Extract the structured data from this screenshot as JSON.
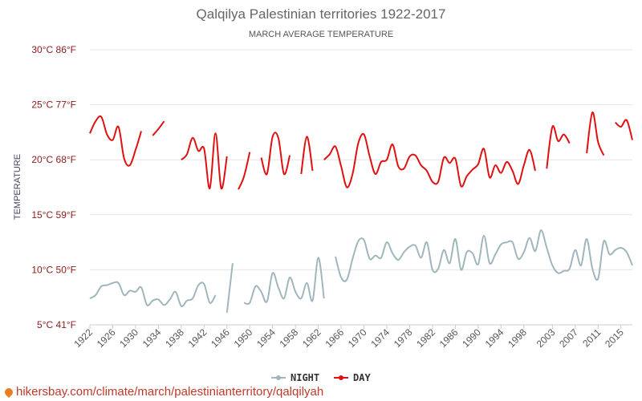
{
  "chart_data": {
    "type": "line",
    "title": "Qalqilya Palestinian territories 1922-2017",
    "subtitle": "MARCH AVERAGE TEMPERATURE",
    "ylabel": "TEMPERATURE",
    "ylim": [
      5,
      30
    ],
    "xlim": [
      1922,
      2017
    ],
    "yticks": [
      {
        "value": 5,
        "label": "5°C 41°F"
      },
      {
        "value": 10,
        "label": "10°C 50°F"
      },
      {
        "value": 15,
        "label": "15°C 59°F"
      },
      {
        "value": 20,
        "label": "20°C 68°F"
      },
      {
        "value": 25,
        "label": "25°C 77°F"
      },
      {
        "value": 30,
        "label": "30°C 86°F"
      }
    ],
    "xticks": [
      1922,
      1926,
      1930,
      1934,
      1938,
      1942,
      1946,
      1950,
      1954,
      1958,
      1962,
      1966,
      1970,
      1974,
      1978,
      1982,
      1986,
      1990,
      1994,
      1998,
      2003,
      2007,
      2011,
      2015
    ],
    "legend_position": "bottom-center",
    "grid": true,
    "series": [
      {
        "name": "NIGHT",
        "color": "#9fb6bd",
        "values": [
          [
            1922,
            7.4
          ],
          [
            1923,
            7.7
          ],
          [
            1924,
            8.5
          ],
          [
            1925,
            8.6
          ],
          [
            1926,
            8.8
          ],
          [
            1927,
            8.8
          ],
          [
            1928,
            7.7
          ],
          [
            1929,
            8.1
          ],
          [
            1930,
            8.0
          ],
          [
            1931,
            8.4
          ],
          [
            1932,
            6.8
          ],
          [
            1933,
            7.2
          ],
          [
            1934,
            7.3
          ],
          [
            1935,
            6.8
          ],
          [
            1936,
            7.3
          ],
          [
            1937,
            8.0
          ],
          [
            1938,
            6.7
          ],
          [
            1939,
            7.2
          ],
          [
            1940,
            7.4
          ],
          [
            1941,
            8.6
          ],
          [
            1942,
            8.7
          ],
          [
            1943,
            7.0
          ],
          [
            1944,
            7.7
          ],
          null,
          [
            1946,
            6.1
          ],
          [
            1947,
            10.6
          ],
          null,
          [
            1949,
            7.0
          ],
          [
            1950,
            7.0
          ],
          [
            1951,
            8.5
          ],
          [
            1952,
            8.0
          ],
          [
            1953,
            7.1
          ],
          [
            1954,
            9.7
          ],
          [
            1955,
            8.4
          ],
          [
            1956,
            7.4
          ],
          [
            1957,
            9.3
          ],
          [
            1958,
            8.0
          ],
          [
            1959,
            7.4
          ],
          [
            1960,
            8.8
          ],
          [
            1961,
            7.2
          ],
          [
            1962,
            11.1
          ],
          [
            1963,
            7.4
          ],
          null,
          [
            1965,
            11.2
          ],
          [
            1966,
            9.3
          ],
          [
            1967,
            9.1
          ],
          [
            1968,
            11.0
          ],
          [
            1969,
            12.6
          ],
          [
            1970,
            12.7
          ],
          [
            1971,
            11.0
          ],
          [
            1972,
            11.3
          ],
          [
            1973,
            11.1
          ],
          [
            1974,
            12.5
          ],
          [
            1975,
            11.5
          ],
          [
            1976,
            10.9
          ],
          [
            1977,
            11.6
          ],
          [
            1978,
            12.1
          ],
          [
            1979,
            12.2
          ],
          [
            1980,
            11.1
          ],
          [
            1981,
            12.5
          ],
          [
            1982,
            10.0
          ],
          [
            1983,
            10.1
          ],
          [
            1984,
            11.8
          ],
          [
            1985,
            10.6
          ],
          [
            1986,
            12.8
          ],
          [
            1987,
            10.0
          ],
          [
            1988,
            11.6
          ],
          [
            1989,
            11.5
          ],
          [
            1990,
            10.5
          ],
          [
            1991,
            13.1
          ],
          [
            1992,
            10.6
          ],
          [
            1993,
            11.4
          ],
          [
            1994,
            12.3
          ],
          [
            1995,
            12.5
          ],
          [
            1996,
            12.5
          ],
          [
            1997,
            11.0
          ],
          [
            1998,
            11.6
          ],
          [
            1999,
            12.9
          ],
          [
            2000,
            11.7
          ],
          [
            2001,
            13.6
          ],
          [
            2002,
            12.0
          ],
          [
            2003,
            10.4
          ],
          [
            2004,
            9.7
          ],
          [
            2005,
            9.9
          ],
          [
            2006,
            10.1
          ],
          [
            2007,
            11.8
          ],
          [
            2008,
            10.4
          ],
          [
            2009,
            12.8
          ],
          [
            2010,
            10.1
          ],
          [
            2011,
            9.2
          ],
          [
            2012,
            12.6
          ],
          [
            2013,
            11.4
          ],
          [
            2014,
            11.8
          ],
          [
            2015,
            12.0
          ],
          [
            2016,
            11.6
          ],
          [
            2017,
            10.4
          ]
        ]
      },
      {
        "name": "DAY",
        "color": "#e01010",
        "values": [
          [
            1922,
            22.4
          ],
          [
            1923,
            23.5
          ],
          [
            1924,
            23.9
          ],
          [
            1925,
            22.3
          ],
          [
            1926,
            21.8
          ],
          [
            1927,
            23.0
          ],
          [
            1928,
            20.1
          ],
          [
            1929,
            19.5
          ],
          [
            1930,
            20.9
          ],
          [
            1931,
            22.6
          ],
          null,
          [
            1933,
            22.2
          ],
          [
            1934,
            22.8
          ],
          [
            1935,
            23.5
          ],
          null,
          [
            1938,
            20.0
          ],
          [
            1939,
            20.5
          ],
          [
            1940,
            22.0
          ],
          [
            1941,
            20.8
          ],
          [
            1942,
            21.0
          ],
          [
            1943,
            17.4
          ],
          [
            1944,
            22.4
          ],
          [
            1945,
            17.4
          ],
          [
            1946,
            20.3
          ],
          null,
          [
            1948,
            17.3
          ],
          [
            1949,
            18.5
          ],
          [
            1950,
            20.7
          ],
          null,
          [
            1952,
            20.2
          ],
          [
            1953,
            18.7
          ],
          [
            1954,
            22.1
          ],
          [
            1955,
            22.0
          ],
          [
            1956,
            18.7
          ],
          [
            1957,
            20.4
          ],
          null,
          [
            1959,
            18.7
          ],
          [
            1960,
            22.1
          ],
          [
            1961,
            19.0
          ],
          null,
          [
            1963,
            20.0
          ],
          [
            1964,
            20.5
          ],
          [
            1965,
            21.2
          ],
          [
            1966,
            19.4
          ],
          [
            1967,
            17.5
          ],
          [
            1968,
            18.7
          ],
          [
            1969,
            21.5
          ],
          [
            1970,
            22.3
          ],
          [
            1971,
            20.3
          ],
          [
            1972,
            18.7
          ],
          [
            1973,
            19.8
          ],
          [
            1974,
            20.0
          ],
          [
            1975,
            21.4
          ],
          [
            1976,
            19.4
          ],
          [
            1977,
            19.2
          ],
          [
            1978,
            20.3
          ],
          [
            1979,
            20.4
          ],
          [
            1980,
            19.5
          ],
          [
            1981,
            19.0
          ],
          [
            1982,
            18.0
          ],
          [
            1983,
            18.0
          ],
          [
            1984,
            20.2
          ],
          [
            1985,
            19.7
          ],
          [
            1986,
            20.1
          ],
          [
            1987,
            17.6
          ],
          [
            1988,
            18.5
          ],
          [
            1989,
            19.1
          ],
          [
            1990,
            19.6
          ],
          [
            1991,
            21.0
          ],
          [
            1992,
            18.4
          ],
          [
            1993,
            19.5
          ],
          [
            1994,
            18.8
          ],
          [
            1995,
            19.8
          ],
          [
            1996,
            19.0
          ],
          [
            1997,
            17.8
          ],
          [
            1998,
            19.5
          ],
          [
            1999,
            20.9
          ],
          [
            2000,
            19.0
          ],
          null,
          [
            2002,
            19.2
          ],
          [
            2003,
            23.0
          ],
          [
            2004,
            21.7
          ],
          [
            2005,
            22.3
          ],
          [
            2006,
            21.5
          ],
          null,
          [
            2009,
            20.6
          ],
          [
            2010,
            24.3
          ],
          [
            2011,
            21.6
          ],
          [
            2012,
            20.4
          ],
          null,
          [
            2014,
            23.4
          ],
          [
            2015,
            23.0
          ],
          [
            2016,
            23.6
          ],
          [
            2017,
            21.8
          ]
        ]
      }
    ]
  },
  "footer": {
    "url": "hikersbay.com/climate/march/palestinianterritory/qalqilyah"
  }
}
